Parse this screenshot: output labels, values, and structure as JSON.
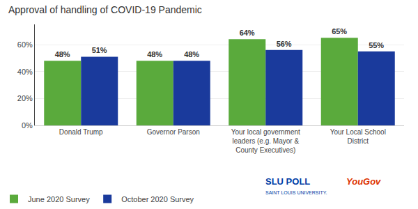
{
  "chart_data": {
    "type": "bar",
    "title": "Approval of handling of COVID-19 Pandemic",
    "categories": [
      "Donald Trump",
      "Governor Parson",
      "Your local government\nleaders (e.g. Mayor &\nCounty Executives)",
      "Your Local School\nDistrict"
    ],
    "series": [
      {
        "name": "June 2020 Survey",
        "color": "#5aaa3c",
        "values": [
          48,
          48,
          64,
          65
        ],
        "value_labels": [
          "48%",
          "48%",
          "64%",
          "65%"
        ]
      },
      {
        "name": "October 2020 Survey",
        "color": "#1a3a9c",
        "values": [
          51,
          48,
          56,
          55
        ],
        "value_labels": [
          "51%",
          "48%",
          "56%",
          "55%"
        ]
      }
    ],
    "ylim": [
      0,
      75
    ],
    "yticks": [
      {
        "value": 0,
        "label": "0%"
      },
      {
        "value": 20,
        "label": "20%"
      },
      {
        "value": 40,
        "label": "40%"
      },
      {
        "value": 60,
        "label": "60%"
      }
    ],
    "grid": true,
    "legend": "lower left",
    "data_labels": true,
    "annotations": [
      {
        "text": "SLU POLL",
        "color": "#003DA5"
      },
      {
        "text": "SAINT LOUIS UNIVERSITY.",
        "color": "#003DA5"
      },
      {
        "text": "YouGov",
        "color": "#dd3300"
      }
    ]
  }
}
